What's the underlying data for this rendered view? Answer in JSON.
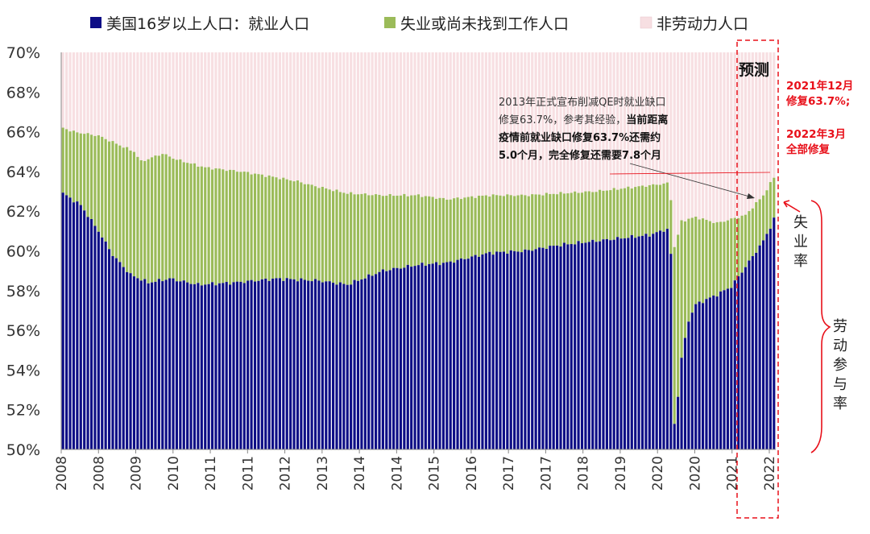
{
  "chart_data": {
    "type": "bar",
    "subtype": "stacked-percent",
    "legend": [
      {
        "name": "美国16岁以上人口：就业人口",
        "color": "#0e0e86"
      },
      {
        "name": "失业或尚未找到工作人口",
        "color": "#9bbb59"
      },
      {
        "name": "非劳动力人口",
        "color": "#f7dfe2"
      }
    ],
    "yaxis": {
      "min": 50,
      "max": 70,
      "step": 2,
      "ticks": [
        "50%",
        "52%",
        "54%",
        "56%",
        "58%",
        "60%",
        "62%",
        "64%",
        "66%",
        "68%",
        "70%"
      ]
    },
    "xaxis": {
      "ticks": [
        "2008",
        "2008",
        "2009",
        "2010",
        "2011",
        "2011",
        "2012",
        "2013",
        "2014",
        "2014",
        "2015",
        "2016",
        "2017",
        "2017",
        "2018",
        "2019",
        "2020",
        "2020",
        "2021",
        "2022"
      ]
    },
    "series": [
      {
        "name": "就业率 (employment-population ratio)",
        "anchors": [
          [
            0,
            62.9
          ],
          [
            5,
            62.3
          ],
          [
            10,
            61.0
          ],
          [
            14,
            59.8
          ],
          [
            19,
            58.8
          ],
          [
            24,
            58.4
          ],
          [
            30,
            58.6
          ],
          [
            38,
            58.3
          ],
          [
            48,
            58.4
          ],
          [
            60,
            58.6
          ],
          [
            72,
            58.5
          ],
          [
            80,
            58.3
          ],
          [
            90,
            59.0
          ],
          [
            100,
            59.3
          ],
          [
            108,
            59.4
          ],
          [
            120,
            59.9
          ],
          [
            130,
            60.0
          ],
          [
            140,
            60.3
          ],
          [
            150,
            60.5
          ],
          [
            165,
            60.8
          ],
          [
            170,
            61.1
          ],
          [
            171,
            59.8
          ],
          [
            172,
            51.3
          ],
          [
            173,
            52.7
          ],
          [
            174,
            54.6
          ],
          [
            176,
            56.5
          ],
          [
            178,
            57.3
          ],
          [
            184,
            57.8
          ],
          [
            188,
            58.2
          ],
          [
            192,
            59.2
          ],
          [
            197,
            60.5
          ],
          [
            199,
            61.2
          ],
          [
            200,
            61.6
          ]
        ]
      },
      {
        "name": "劳动参与率 (labor force participation rate)",
        "anchors": [
          [
            0,
            66.2
          ],
          [
            3,
            66.0
          ],
          [
            10,
            65.8
          ],
          [
            20,
            65.0
          ],
          [
            22,
            64.5
          ],
          [
            28,
            64.9
          ],
          [
            32,
            64.6
          ],
          [
            40,
            64.2
          ],
          [
            50,
            64.0
          ],
          [
            60,
            63.7
          ],
          [
            66,
            63.5
          ],
          [
            70,
            63.3
          ],
          [
            80,
            62.9
          ],
          [
            90,
            62.8
          ],
          [
            100,
            62.8
          ],
          [
            108,
            62.6
          ],
          [
            120,
            62.8
          ],
          [
            130,
            62.8
          ],
          [
            140,
            62.9
          ],
          [
            150,
            63.0
          ],
          [
            160,
            63.2
          ],
          [
            170,
            63.4
          ],
          [
            171,
            62.6
          ],
          [
            172,
            60.2
          ],
          [
            173,
            60.8
          ],
          [
            174,
            61.5
          ],
          [
            178,
            61.7
          ],
          [
            184,
            61.4
          ],
          [
            190,
            61.7
          ],
          [
            192,
            61.8
          ],
          [
            194,
            62.2
          ],
          [
            197,
            62.8
          ],
          [
            200,
            63.7
          ]
        ]
      }
    ],
    "bar_count": 201,
    "forecast_label": "预测",
    "annotation_lines": [
      [
        {
          "text": "2013年正式宣布削减QE时就业缺口",
          "bold": false
        }
      ],
      [
        {
          "text": "修复63.7%，参考其经验，",
          "bold": false
        },
        {
          "text": "当前距离",
          "bold": true
        }
      ],
      [
        {
          "text": "疫情前就业缺口修复63.7%还需约",
          "bold": true
        }
      ],
      [
        {
          "text": "5.0个月，完全修复还需要7.8个月",
          "bold": true
        }
      ]
    ],
    "red_notes": [
      "2021年12月",
      "修复63.7%;",
      "2022年3月",
      "全部修复"
    ],
    "side_labels": {
      "unemployment": [
        "失",
        "业",
        "率"
      ],
      "participation": [
        "劳",
        "动",
        "参",
        "与",
        "率"
      ]
    },
    "colors": {
      "employed": "#0e0e86",
      "unemployed": "#9bbb59",
      "not_in_labor_force": "#f7dfe2",
      "highlight": "#e8101a"
    }
  }
}
